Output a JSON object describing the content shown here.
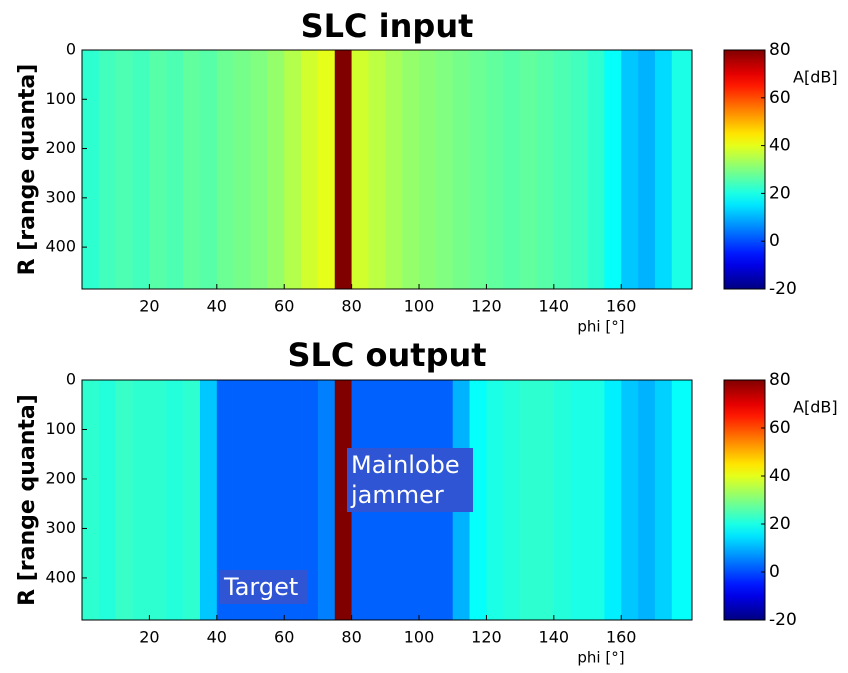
{
  "chart_data": [
    {
      "type": "heatmap",
      "title": "SLC input",
      "x_label": "phi [°]",
      "y_label": "R [range quanta]",
      "colorbar_label": "A[dB]",
      "colormap": "jet",
      "x_bins": [
        0,
        5,
        10,
        15,
        20,
        25,
        30,
        35,
        40,
        45,
        50,
        55,
        60,
        65,
        70,
        75,
        80,
        85,
        90,
        95,
        100,
        105,
        110,
        115,
        120,
        125,
        130,
        135,
        140,
        145,
        150,
        155,
        160,
        165,
        170,
        175,
        181
      ],
      "values": [
        22,
        24,
        25,
        24,
        26,
        25,
        27,
        26,
        28,
        29,
        30,
        32,
        35,
        38,
        40,
        80,
        38,
        36,
        34,
        32,
        31,
        30,
        29,
        28,
        27,
        26,
        27,
        26,
        25,
        24,
        22,
        18,
        12,
        10,
        14,
        20
      ],
      "xlim": [
        0,
        181
      ],
      "ylim": [
        0,
        485
      ],
      "xticks": [
        20,
        40,
        60,
        80,
        100,
        120,
        140,
        160
      ],
      "yticks": [
        0,
        100,
        200,
        300,
        400
      ],
      "clim": [
        -20,
        80
      ],
      "cticks": [
        -20,
        0,
        20,
        40,
        60,
        80
      ]
    },
    {
      "type": "heatmap",
      "title": "SLC output",
      "x_label": "phi [°]",
      "y_label": "R [range quanta]",
      "colorbar_label": "A[dB]",
      "colormap": "jet",
      "x_bins": [
        0,
        5,
        10,
        15,
        20,
        25,
        30,
        35,
        40,
        45,
        50,
        55,
        60,
        65,
        70,
        75,
        80,
        85,
        90,
        95,
        100,
        105,
        110,
        115,
        120,
        125,
        130,
        135,
        140,
        145,
        150,
        155,
        160,
        165,
        170,
        175,
        181
      ],
      "values": [
        22,
        21,
        23,
        22,
        22,
        21,
        22,
        12,
        2,
        2,
        2,
        2,
        2,
        2,
        5,
        80,
        2,
        2,
        2,
        2,
        2,
        2,
        10,
        18,
        20,
        21,
        22,
        22,
        21,
        20,
        20,
        16,
        12,
        10,
        13,
        18
      ],
      "xlim": [
        0,
        181
      ],
      "ylim": [
        0,
        485
      ],
      "xticks": [
        20,
        40,
        60,
        80,
        100,
        120,
        140,
        160
      ],
      "yticks": [
        0,
        100,
        200,
        300,
        400
      ],
      "clim": [
        -20,
        80
      ],
      "cticks": [
        -20,
        0,
        20,
        40,
        60,
        80
      ],
      "annotations": [
        {
          "text": "Mainlobe jammer"
        },
        {
          "text": "Target"
        }
      ]
    }
  ]
}
